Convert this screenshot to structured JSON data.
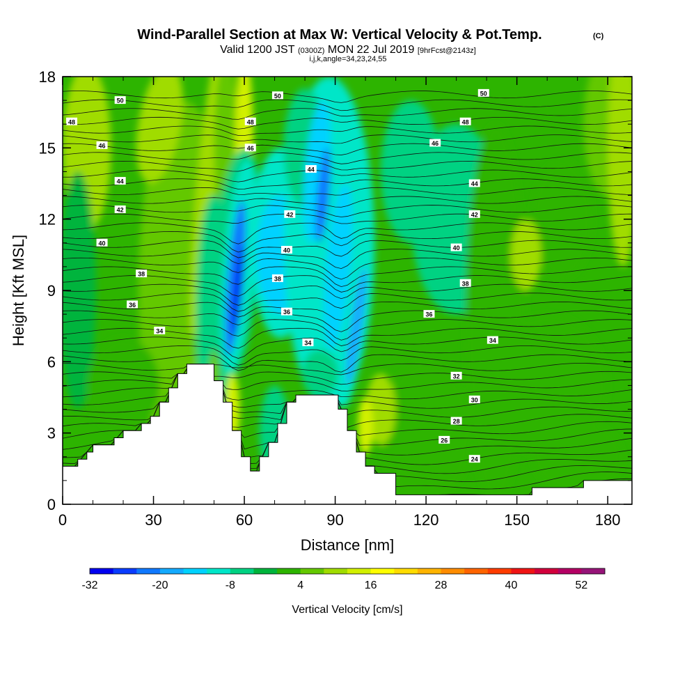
{
  "title": {
    "main": "Wind-Parallel Section at Max W: Vertical Velocity & Pot.Temp.",
    "copyright": "(C)",
    "valid_prefix": "Valid 1200 JST",
    "valid_utc": "(0300Z)",
    "valid_date": "MON 22 Jul 2019",
    "forecast": "[9hrFcst@2143z]",
    "indices": "i,j,k,angle=34,23,24,55"
  },
  "chart_data": {
    "type": "heatmap",
    "xlabel": "Distance [nm]",
    "ylabel": "Height [Kft MSL]",
    "xlim": [
      0,
      188
    ],
    "ylim": [
      0,
      18
    ],
    "x_ticks": [
      0,
      30,
      60,
      90,
      120,
      150,
      180
    ],
    "y_ticks": [
      0,
      3,
      6,
      9,
      12,
      15,
      18
    ],
    "x_tick_labels": [
      "0",
      "30",
      "60",
      "90",
      "120",
      "150",
      "180"
    ],
    "y_tick_labels": [
      "0",
      "3",
      "6",
      "9",
      "12",
      "15",
      "18"
    ],
    "colorbar": {
      "title": "Vertical Velocity [cm/s]",
      "min": -32,
      "max": 56,
      "step": 4,
      "tick_values": [
        -32,
        -20,
        -8,
        4,
        16,
        28,
        40,
        52
      ],
      "tick_labels": [
        "-32",
        "-20",
        "-8",
        "4",
        "16",
        "28",
        "40",
        "52"
      ],
      "colors": [
        "#0000f0",
        "#0a3cff",
        "#0f78ff",
        "#14aaff",
        "#00d2ff",
        "#00e6c8",
        "#00d282",
        "#00b43c",
        "#2db400",
        "#64c800",
        "#a0dc00",
        "#d2f000",
        "#ffff00",
        "#ffdc00",
        "#ffb400",
        "#ff8c00",
        "#ff6400",
        "#ff3c00",
        "#f01414",
        "#d2003c",
        "#b40064",
        "#961478"
      ]
    },
    "terrain": [
      [
        0,
        1.6
      ],
      [
        5,
        1.6
      ],
      [
        5,
        1.9
      ],
      [
        8,
        1.9
      ],
      [
        8,
        2.2
      ],
      [
        10,
        2.2
      ],
      [
        10,
        2.5
      ],
      [
        17,
        2.5
      ],
      [
        17,
        2.8
      ],
      [
        20,
        2.8
      ],
      [
        20,
        3.1
      ],
      [
        26,
        3.1
      ],
      [
        26,
        3.4
      ],
      [
        29,
        3.4
      ],
      [
        29,
        3.7
      ],
      [
        32,
        3.7
      ],
      [
        32,
        4.3
      ],
      [
        35,
        4.3
      ],
      [
        35,
        4.9
      ],
      [
        38,
        4.9
      ],
      [
        38,
        5.5
      ],
      [
        41,
        5.5
      ],
      [
        41,
        5.9
      ],
      [
        50,
        5.9
      ],
      [
        50,
        5.2
      ],
      [
        53,
        5.2
      ],
      [
        53,
        4.3
      ],
      [
        56,
        4.3
      ],
      [
        56,
        3.1
      ],
      [
        59,
        3.1
      ],
      [
        59,
        2.0
      ],
      [
        62,
        2.0
      ],
      [
        62,
        1.4
      ],
      [
        65,
        1.4
      ],
      [
        65,
        2.0
      ],
      [
        68,
        2.0
      ],
      [
        68,
        2.6
      ],
      [
        71,
        2.6
      ],
      [
        71,
        3.4
      ],
      [
        74,
        3.4
      ],
      [
        74,
        4.3
      ],
      [
        77,
        4.3
      ],
      [
        77,
        4.6
      ],
      [
        91,
        4.6
      ],
      [
        91,
        4.0
      ],
      [
        94,
        4.0
      ],
      [
        94,
        3.1
      ],
      [
        97,
        3.1
      ],
      [
        97,
        2.2
      ],
      [
        100,
        2.2
      ],
      [
        100,
        1.6
      ],
      [
        103,
        1.6
      ],
      [
        103,
        1.3
      ],
      [
        110,
        1.3
      ],
      [
        110,
        0.4
      ],
      [
        155,
        0.4
      ],
      [
        155,
        0.7
      ],
      [
        172,
        0.7
      ],
      [
        172,
        1.0
      ],
      [
        188,
        1.0
      ]
    ],
    "theta_contours": [
      {
        "value": "24",
        "label_x": 136,
        "label_y": 1.9
      },
      {
        "value": "26",
        "label_x": 126,
        "label_y": 2.7
      },
      {
        "value": "28",
        "label_x": 130,
        "label_y": 3.5
      },
      {
        "value": "30",
        "label_x": 136,
        "label_y": 4.4
      },
      {
        "value": "32",
        "label_x": 130,
        "label_y": 5.4
      },
      {
        "value": "34",
        "label_x": 32,
        "label_y": 7.3
      },
      {
        "value": "34",
        "label_x": 81,
        "label_y": 6.8
      },
      {
        "value": "34",
        "label_x": 142,
        "label_y": 6.9
      },
      {
        "value": "36",
        "label_x": 23,
        "label_y": 8.4
      },
      {
        "value": "36",
        "label_x": 74,
        "label_y": 8.1
      },
      {
        "value": "36",
        "label_x": 121,
        "label_y": 8.0
      },
      {
        "value": "38",
        "label_x": 26,
        "label_y": 9.7
      },
      {
        "value": "38",
        "label_x": 71,
        "label_y": 9.5
      },
      {
        "value": "38",
        "label_x": 133,
        "label_y": 9.3
      },
      {
        "value": "40",
        "label_x": 13,
        "label_y": 11.0
      },
      {
        "value": "40",
        "label_x": 74,
        "label_y": 10.7
      },
      {
        "value": "40",
        "label_x": 130,
        "label_y": 10.8
      },
      {
        "value": "42",
        "label_x": 19,
        "label_y": 12.4
      },
      {
        "value": "42",
        "label_x": 75,
        "label_y": 12.2
      },
      {
        "value": "42",
        "label_x": 136,
        "label_y": 12.2
      },
      {
        "value": "44",
        "label_x": 19,
        "label_y": 13.6
      },
      {
        "value": "44",
        "label_x": 82,
        "label_y": 14.1
      },
      {
        "value": "44",
        "label_x": 136,
        "label_y": 13.5
      },
      {
        "value": "46",
        "label_x": 13,
        "label_y": 15.1
      },
      {
        "value": "46",
        "label_x": 62,
        "label_y": 15.0
      },
      {
        "value": "46",
        "label_x": 123,
        "label_y": 15.2
      },
      {
        "value": "48",
        "label_x": 3,
        "label_y": 16.1
      },
      {
        "value": "48",
        "label_x": 62,
        "label_y": 16.1
      },
      {
        "value": "48",
        "label_x": 133,
        "label_y": 16.1
      },
      {
        "value": "50",
        "label_x": 19,
        "label_y": 17.0
      },
      {
        "value": "50",
        "label_x": 71,
        "label_y": 17.2
      },
      {
        "value": "50",
        "label_x": 139,
        "label_y": 17.3
      }
    ]
  }
}
